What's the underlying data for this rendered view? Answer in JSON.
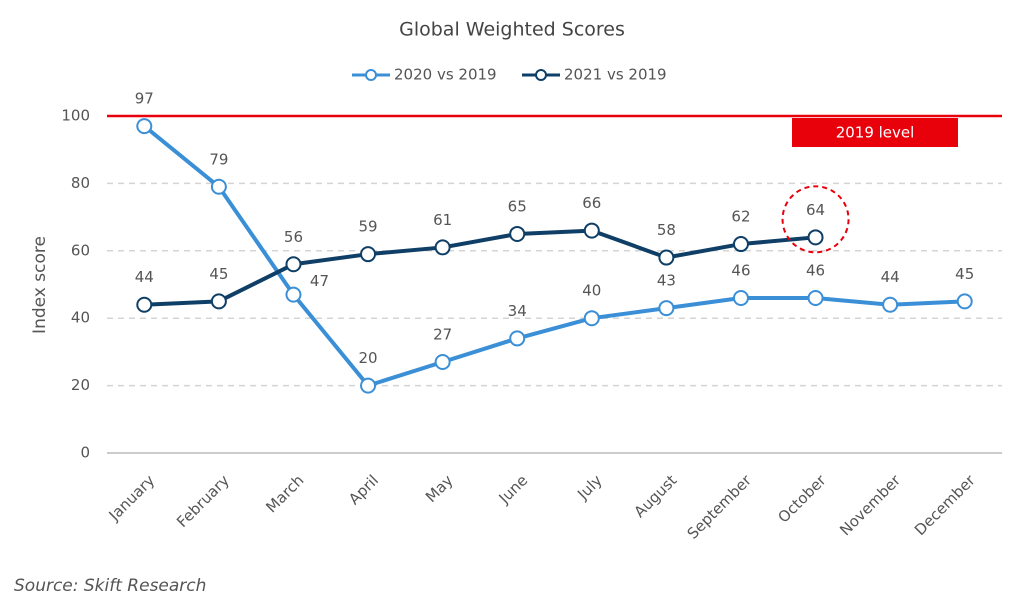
{
  "chart_data": {
    "type": "line",
    "title": "Global Weighted Scores",
    "y_label": "Index score",
    "categories": [
      "January",
      "February",
      "March",
      "April",
      "May",
      "June",
      "July",
      "August",
      "September",
      "October",
      "November",
      "December"
    ],
    "series": [
      {
        "name": "2020 vs 2019",
        "color": "#3a8fd6",
        "values": [
          97,
          79,
          47,
          20,
          27,
          34,
          40,
          43,
          46,
          46,
          44,
          45
        ]
      },
      {
        "name": "2021 vs 2019",
        "color": "#0f3f66",
        "values": [
          44,
          45,
          56,
          59,
          61,
          65,
          66,
          58,
          62,
          64,
          null,
          null
        ]
      }
    ],
    "ylim": [
      0,
      100
    ],
    "yticks": [
      0,
      20,
      40,
      60,
      80,
      100
    ],
    "grid": true,
    "legend": "top",
    "reference_line": {
      "value": 100,
      "label": "2019 level",
      "color": "#e8000b"
    },
    "source": "Source: Skift Research"
  }
}
